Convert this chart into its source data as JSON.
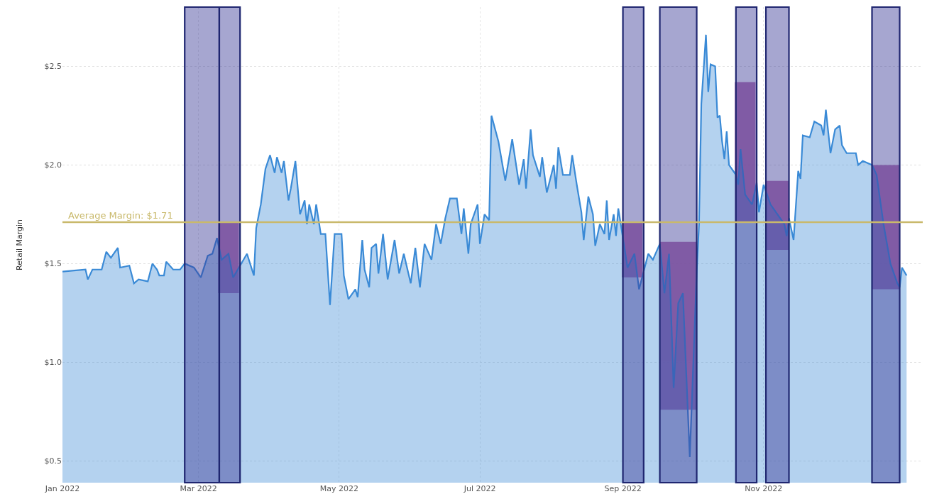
{
  "chart_data": {
    "type": "area",
    "ylabel": "Retail Margin",
    "x": [
      "2022-01-01",
      "2022-01-11",
      "2022-01-12",
      "2022-01-14",
      "2022-01-18",
      "2022-01-20",
      "2022-01-22",
      "2022-01-25",
      "2022-01-26",
      "2022-01-30",
      "2022-02-01",
      "2022-02-03",
      "2022-02-07",
      "2022-02-09",
      "2022-02-11",
      "2022-02-12",
      "2022-02-14",
      "2022-02-15",
      "2022-02-18",
      "2022-02-21",
      "2022-02-23",
      "2022-02-27",
      "2022-03-02",
      "2022-03-05",
      "2022-03-07",
      "2022-03-09",
      "2022-03-11",
      "2022-03-14",
      "2022-03-16",
      "2022-03-19",
      "2022-03-22",
      "2022-03-25",
      "2022-03-26",
      "2022-03-28",
      "2022-03-30",
      "2022-04-01",
      "2022-04-03",
      "2022-04-04",
      "2022-04-06",
      "2022-04-07",
      "2022-04-09",
      "2022-04-10",
      "2022-04-12",
      "2022-04-14",
      "2022-04-16",
      "2022-04-17",
      "2022-04-18",
      "2022-04-20",
      "2022-04-21",
      "2022-04-23",
      "2022-04-25",
      "2022-04-27",
      "2022-04-29",
      "2022-05-02",
      "2022-05-03",
      "2022-05-05",
      "2022-05-08",
      "2022-05-09",
      "2022-05-11",
      "2022-05-12",
      "2022-05-14",
      "2022-05-15",
      "2022-05-17",
      "2022-05-18",
      "2022-05-20",
      "2022-05-22",
      "2022-05-25",
      "2022-05-27",
      "2022-05-29",
      "2022-06-01",
      "2022-06-03",
      "2022-06-05",
      "2022-06-07",
      "2022-06-10",
      "2022-06-12",
      "2022-06-14",
      "2022-06-16",
      "2022-06-18",
      "2022-06-21",
      "2022-06-23",
      "2022-06-24",
      "2022-06-26",
      "2022-06-27",
      "2022-06-30",
      "2022-07-01",
      "2022-07-03",
      "2022-07-05",
      "2022-07-06",
      "2022-07-09",
      "2022-07-12",
      "2022-07-15",
      "2022-07-18",
      "2022-07-20",
      "2022-07-21",
      "2022-07-23",
      "2022-07-24",
      "2022-07-27",
      "2022-07-28",
      "2022-07-30",
      "2022-08-02",
      "2022-08-03",
      "2022-08-04",
      "2022-08-06",
      "2022-08-09",
      "2022-08-10",
      "2022-08-12",
      "2022-08-14",
      "2022-08-15",
      "2022-08-17",
      "2022-08-19",
      "2022-08-20",
      "2022-08-22",
      "2022-08-24",
      "2022-08-25",
      "2022-08-26",
      "2022-08-28",
      "2022-08-29",
      "2022-08-30",
      "2022-09-03",
      "2022-09-06",
      "2022-09-08",
      "2022-09-12",
      "2022-09-14",
      "2022-09-17",
      "2022-09-19",
      "2022-09-21",
      "2022-09-23",
      "2022-09-25",
      "2022-09-27",
      "2022-09-30",
      "2022-10-03",
      "2022-10-04",
      "2022-10-05",
      "2022-10-07",
      "2022-10-08",
      "2022-10-09",
      "2022-10-11",
      "2022-10-12",
      "2022-10-13",
      "2022-10-14",
      "2022-10-15",
      "2022-10-16",
      "2022-10-17",
      "2022-10-20",
      "2022-10-21",
      "2022-10-22",
      "2022-10-24",
      "2022-10-27",
      "2022-10-29",
      "2022-10-30",
      "2022-11-01",
      "2022-11-04",
      "2022-11-07",
      "2022-11-10",
      "2022-11-11",
      "2022-11-12",
      "2022-11-14",
      "2022-11-16",
      "2022-11-17",
      "2022-11-18",
      "2022-11-21",
      "2022-11-23",
      "2022-11-26",
      "2022-11-27",
      "2022-11-28",
      "2022-11-30",
      "2022-12-02",
      "2022-12-04",
      "2022-12-05",
      "2022-12-07",
      "2022-12-11",
      "2022-12-12",
      "2022-12-14",
      "2022-12-18",
      "2022-12-20",
      "2022-12-23",
      "2022-12-26",
      "2022-12-29",
      "2022-12-30",
      "2022-12-31",
      "2023-01-02"
    ],
    "series": [
      {
        "color": "#3a8ad6",
        "values": [
          1.46,
          1.47,
          1.42,
          1.47,
          1.47,
          1.56,
          1.53,
          1.58,
          1.48,
          1.49,
          1.4,
          1.42,
          1.41,
          1.5,
          1.47,
          1.44,
          1.44,
          1.51,
          1.47,
          1.47,
          1.5,
          1.48,
          1.43,
          1.54,
          1.55,
          1.63,
          1.52,
          1.55,
          1.43,
          1.49,
          1.55,
          1.44,
          1.68,
          1.8,
          1.98,
          2.05,
          1.96,
          2.04,
          1.96,
          2.02,
          1.82,
          1.88,
          2.02,
          1.75,
          1.82,
          1.7,
          1.8,
          1.7,
          1.8,
          1.65,
          1.65,
          1.29,
          1.65,
          1.65,
          1.44,
          1.32,
          1.37,
          1.33,
          1.62,
          1.47,
          1.38,
          1.58,
          1.6,
          1.45,
          1.65,
          1.42,
          1.62,
          1.45,
          1.55,
          1.4,
          1.58,
          1.38,
          1.6,
          1.52,
          1.7,
          1.6,
          1.73,
          1.83,
          1.83,
          1.65,
          1.78,
          1.55,
          1.7,
          1.8,
          1.6,
          1.75,
          1.72,
          2.25,
          2.12,
          1.92,
          2.13,
          1.9,
          2.03,
          1.88,
          2.18,
          2.05,
          1.94,
          2.04,
          1.86,
          2.0,
          1.88,
          2.09,
          1.95,
          1.95,
          2.05,
          1.9,
          1.76,
          1.62,
          1.84,
          1.75,
          1.59,
          1.7,
          1.65,
          1.82,
          1.62,
          1.75,
          1.64,
          1.78,
          1.48,
          1.55,
          1.37,
          1.55,
          1.52,
          1.6,
          1.35,
          1.55,
          0.87,
          1.3,
          1.35,
          0.52,
          1.46,
          1.7,
          2.31,
          2.66,
          2.37,
          2.51,
          2.5,
          2.24,
          2.25,
          2.12,
          2.03,
          2.17,
          2.0,
          1.95,
          1.9,
          2.08,
          1.85,
          1.8,
          1.91,
          1.76,
          1.9,
          1.8,
          1.75,
          1.7,
          1.64,
          1.73,
          1.62,
          1.97,
          1.93,
          2.15,
          2.14,
          2.22,
          2.2,
          2.15,
          2.28,
          2.06,
          2.18,
          2.2,
          2.1,
          2.06,
          2.06,
          2.0,
          2.02,
          2.0,
          1.95,
          1.7,
          1.5,
          1.4,
          1.38,
          1.48,
          1.44
        ]
      },
      {
        "type": "bar",
        "color": "#b060a4",
        "x": [
          "2022-03-14",
          "2022-09-05",
          "2022-09-25",
          "2022-10-24",
          "2022-11-07",
          "2022-12-24"
        ],
        "base": [
          1.35,
          1.43,
          0.76,
          1.71,
          1.57,
          1.37
        ],
        "values": [
          0.36,
          0.28,
          0.85,
          0.71,
          0.35,
          0.63
        ]
      }
    ],
    "xlim": [
      "2022-01-01",
      "2023-01-09"
    ],
    "xticks": [
      {
        "value": "2022-01-01",
        "label": "Jan 2022"
      },
      {
        "value": "2022-03-01",
        "label": "Mar 2022"
      },
      {
        "value": "2022-05-01",
        "label": "May 2022"
      },
      {
        "value": "2022-07-01",
        "label": "Jul 2022"
      },
      {
        "value": "2022-09-01",
        "label": "Sep 2022"
      },
      {
        "value": "2022-11-01",
        "label": "Nov 2022"
      }
    ],
    "ylim": [
      0.39,
      2.8
    ],
    "yticks": [
      {
        "value": 0.5,
        "label": "$0.5"
      },
      {
        "value": 1.0,
        "label": "$1.0"
      },
      {
        "value": 1.5,
        "label": "$1.5"
      },
      {
        "value": 2.0,
        "label": "$2.0"
      },
      {
        "value": 2.5,
        "label": "$2.5"
      }
    ],
    "ref_lines": [
      {
        "axis": "y",
        "value": 1.71,
        "label": "Average Margin: $1.71",
        "color": "#c9b96b"
      }
    ],
    "bands": [
      {
        "axis": "x",
        "from": "2022-02-23",
        "to": "2022-03-10",
        "color": "#3a3a97"
      },
      {
        "axis": "x",
        "from": "2022-03-10",
        "to": "2022-03-19",
        "color": "#3a3a97"
      },
      {
        "axis": "x",
        "from": "2022-09-01",
        "to": "2022-09-10",
        "color": "#3a3a97"
      },
      {
        "axis": "x",
        "from": "2022-09-17",
        "to": "2022-10-03",
        "color": "#3a3a97"
      },
      {
        "axis": "x",
        "from": "2022-10-20",
        "to": "2022-10-29",
        "color": "#3a3a97"
      },
      {
        "axis": "x",
        "from": "2022-11-02",
        "to": "2022-11-12",
        "color": "#3a3a97"
      },
      {
        "axis": "x",
        "from": "2022-12-18",
        "to": "2022-12-30",
        "color": "#3a3a97"
      }
    ],
    "grid": true
  }
}
